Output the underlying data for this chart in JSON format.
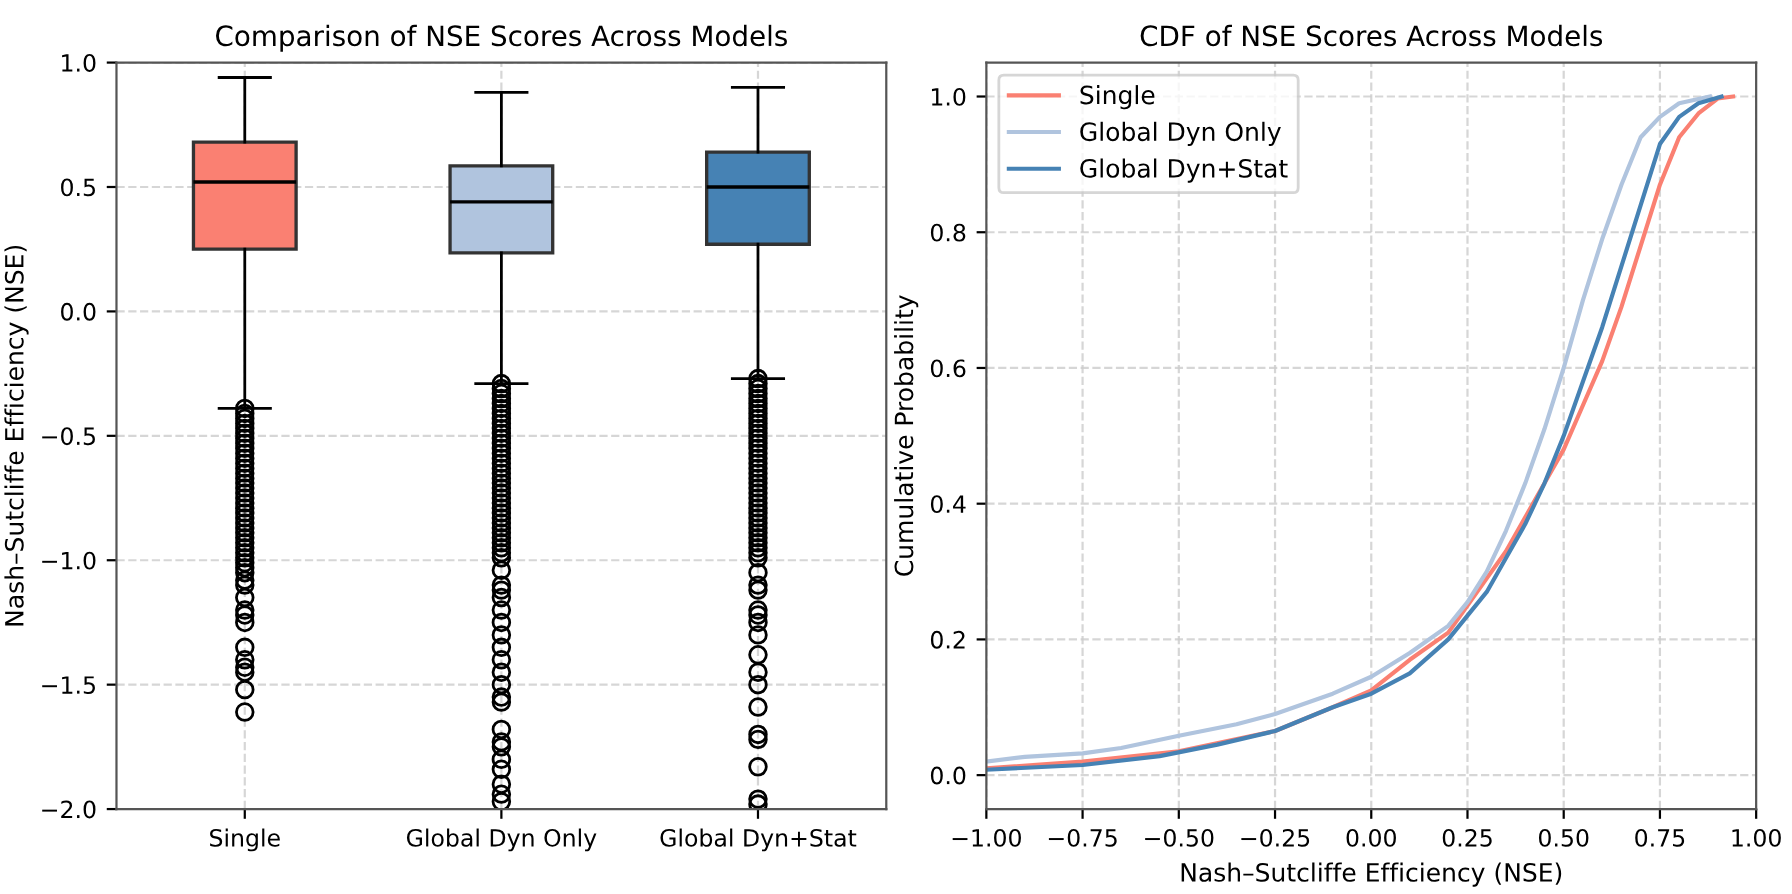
{
  "chart_data": [
    {
      "type": "box",
      "title": "Comparison of NSE Scores Across Models",
      "ylabel": "Nash–Sutcliffe Efficiency (NSE)",
      "categories": [
        "Single",
        "Global Dyn Only",
        "Global Dyn+Stat"
      ],
      "colors": [
        "#fa8072",
        "#b0c4de",
        "#4682b4"
      ],
      "boxes": [
        {
          "low": -0.39,
          "q1": 0.25,
          "median": 0.52,
          "q3": 0.68,
          "high": 0.94,
          "outliers": [
            -0.39,
            -0.41,
            -0.43,
            -0.45,
            -0.47,
            -0.49,
            -0.51,
            -0.53,
            -0.55,
            -0.57,
            -0.59,
            -0.61,
            -0.63,
            -0.65,
            -0.67,
            -0.69,
            -0.71,
            -0.73,
            -0.75,
            -0.77,
            -0.79,
            -0.81,
            -0.83,
            -0.85,
            -0.87,
            -0.89,
            -0.91,
            -0.93,
            -0.95,
            -0.97,
            -0.99,
            -1.01,
            -1.03,
            -1.05,
            -1.08,
            -1.1,
            -1.15,
            -1.2,
            -1.22,
            -1.25,
            -1.35,
            -1.4,
            -1.43,
            -1.45,
            -1.52,
            -1.61
          ]
        },
        {
          "low": -0.29,
          "q1": 0.235,
          "median": 0.44,
          "q3": 0.585,
          "high": 0.88,
          "outliers": [
            -0.29,
            -0.31,
            -0.33,
            -0.35,
            -0.37,
            -0.39,
            -0.41,
            -0.43,
            -0.45,
            -0.47,
            -0.49,
            -0.51,
            -0.53,
            -0.55,
            -0.57,
            -0.59,
            -0.61,
            -0.63,
            -0.65,
            -0.67,
            -0.69,
            -0.71,
            -0.73,
            -0.75,
            -0.77,
            -0.79,
            -0.81,
            -0.83,
            -0.85,
            -0.87,
            -0.89,
            -0.91,
            -0.93,
            -0.95,
            -0.97,
            -0.99,
            -1.04,
            -1.1,
            -1.12,
            -1.15,
            -1.2,
            -1.25,
            -1.3,
            -1.35,
            -1.4,
            -1.45,
            -1.5,
            -1.55,
            -1.57,
            -1.68,
            -1.73,
            -1.75,
            -1.8,
            -1.84,
            -1.9,
            -1.94,
            -1.97
          ]
        },
        {
          "low": -0.27,
          "q1": 0.27,
          "median": 0.5,
          "q3": 0.64,
          "high": 0.9,
          "outliers": [
            -0.27,
            -0.29,
            -0.31,
            -0.33,
            -0.35,
            -0.37,
            -0.39,
            -0.41,
            -0.43,
            -0.45,
            -0.47,
            -0.49,
            -0.51,
            -0.53,
            -0.55,
            -0.57,
            -0.59,
            -0.61,
            -0.63,
            -0.65,
            -0.67,
            -0.69,
            -0.71,
            -0.73,
            -0.75,
            -0.77,
            -0.79,
            -0.81,
            -0.83,
            -0.85,
            -0.87,
            -0.89,
            -0.91,
            -0.93,
            -0.95,
            -0.97,
            -0.99,
            -1.05,
            -1.1,
            -1.12,
            -1.2,
            -1.22,
            -1.25,
            -1.3,
            -1.38,
            -1.45,
            -1.5,
            -1.59,
            -1.7,
            -1.72,
            -1.83,
            -1.96,
            -1.98
          ]
        }
      ],
      "ylim": [
        -2.0,
        1.0
      ],
      "yticks": [
        {
          "value": -2.0,
          "label": "−2.0"
        },
        {
          "value": -1.5,
          "label": "−1.5"
        },
        {
          "value": -1.0,
          "label": "−1.0"
        },
        {
          "value": -0.5,
          "label": "−0.5"
        },
        {
          "value": 0.0,
          "label": "0.0"
        },
        {
          "value": 0.5,
          "label": "0.5"
        },
        {
          "value": 1.0,
          "label": "1.0"
        }
      ],
      "grid": true,
      "marker": "circle"
    },
    {
      "type": "line",
      "title": "CDF of NSE Scores Across Models",
      "xlabel": "Nash–Sutcliffe Efficiency (NSE)",
      "ylabel": "Cumulative Probability",
      "series": [
        {
          "name": "Single",
          "color": "#fa8072",
          "x": [
            -1.0,
            -0.75,
            -0.5,
            -0.25,
            -0.1,
            0.0,
            0.1,
            0.2,
            0.25,
            0.3,
            0.35,
            0.4,
            0.45,
            0.5,
            0.55,
            0.6,
            0.65,
            0.7,
            0.75,
            0.8,
            0.85,
            0.9,
            0.94
          ],
          "values": [
            0.01,
            0.02,
            0.035,
            0.065,
            0.1,
            0.125,
            0.17,
            0.21,
            0.25,
            0.29,
            0.33,
            0.38,
            0.43,
            0.48,
            0.545,
            0.61,
            0.69,
            0.78,
            0.87,
            0.94,
            0.975,
            0.997,
            1.0
          ]
        },
        {
          "name": "Global Dyn Only",
          "color": "#b0c4de",
          "x": [
            -1.0,
            -0.9,
            -0.75,
            -0.65,
            -0.5,
            -0.35,
            -0.25,
            -0.1,
            0.0,
            0.1,
            0.2,
            0.25,
            0.3,
            0.35,
            0.4,
            0.45,
            0.5,
            0.55,
            0.6,
            0.65,
            0.7,
            0.75,
            0.8,
            0.88
          ],
          "values": [
            0.02,
            0.027,
            0.032,
            0.04,
            0.058,
            0.075,
            0.09,
            0.12,
            0.145,
            0.18,
            0.22,
            0.255,
            0.3,
            0.36,
            0.43,
            0.51,
            0.6,
            0.7,
            0.79,
            0.87,
            0.94,
            0.97,
            0.99,
            1.0
          ]
        },
        {
          "name": "Global Dyn+Stat",
          "color": "#4682b4",
          "x": [
            -1.0,
            -0.75,
            -0.55,
            -0.4,
            -0.25,
            -0.1,
            0.0,
            0.1,
            0.2,
            0.25,
            0.3,
            0.35,
            0.4,
            0.45,
            0.5,
            0.55,
            0.6,
            0.65,
            0.7,
            0.75,
            0.8,
            0.85,
            0.91
          ],
          "values": [
            0.008,
            0.015,
            0.028,
            0.045,
            0.065,
            0.1,
            0.12,
            0.15,
            0.2,
            0.235,
            0.27,
            0.32,
            0.37,
            0.43,
            0.5,
            0.58,
            0.66,
            0.75,
            0.84,
            0.93,
            0.97,
            0.99,
            1.0
          ]
        }
      ],
      "xlim": [
        -1.0,
        1.0
      ],
      "xticks": [
        {
          "value": -1.0,
          "label": "−1.00"
        },
        {
          "value": -0.75,
          "label": "−0.75"
        },
        {
          "value": -0.5,
          "label": "−0.50"
        },
        {
          "value": -0.25,
          "label": "−0.25"
        },
        {
          "value": 0.0,
          "label": "0.00"
        },
        {
          "value": 0.25,
          "label": "0.25"
        },
        {
          "value": 0.5,
          "label": "0.50"
        },
        {
          "value": 0.75,
          "label": "0.75"
        },
        {
          "value": 1.0,
          "label": "1.00"
        }
      ],
      "ylim": [
        -0.05,
        1.05
      ],
      "yticks": [
        {
          "value": 0.0,
          "label": "0.0"
        },
        {
          "value": 0.2,
          "label": "0.2"
        },
        {
          "value": 0.4,
          "label": "0.4"
        },
        {
          "value": 0.6,
          "label": "0.6"
        },
        {
          "value": 0.8,
          "label": "0.8"
        },
        {
          "value": 1.0,
          "label": "1.0"
        }
      ],
      "grid": true,
      "legend": "top left",
      "line_style": "solid",
      "marker": "none"
    }
  ]
}
